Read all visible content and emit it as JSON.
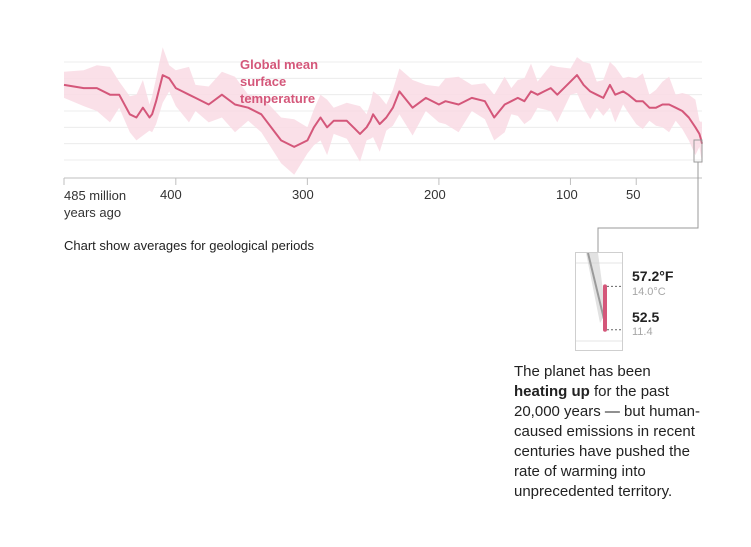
{
  "chart_data": {
    "type": "line",
    "series": [
      {
        "name": "Global mean surface temperature",
        "color": "#d4577a",
        "band_color": "#f9dbe4",
        "x": [
          485,
          470,
          460,
          450,
          443,
          435,
          430,
          425,
          420,
          418,
          415,
          410,
          405,
          400,
          395,
          390,
          385,
          375,
          365,
          355,
          345,
          335,
          320,
          310,
          300,
          295,
          290,
          285,
          280,
          270,
          265,
          260,
          255,
          252,
          250,
          245,
          240,
          235,
          230,
          220,
          210,
          200,
          195,
          185,
          175,
          165,
          158,
          150,
          145,
          140,
          135,
          130,
          125,
          120,
          115,
          110,
          100,
          95,
          90,
          85,
          80,
          75,
          70,
          66,
          60,
          56,
          50,
          45,
          40,
          35,
          30,
          25,
          20,
          15,
          10,
          5,
          2,
          0.5,
          0
        ],
        "y": [
          73,
          72,
          72,
          70,
          70,
          64,
          63,
          66,
          63,
          64,
          68,
          76,
          75,
          72,
          71,
          70,
          69,
          67,
          70,
          67,
          66,
          64,
          56,
          54,
          56,
          60,
          63,
          60,
          62,
          62,
          60,
          58,
          60,
          62,
          64,
          61,
          63,
          66,
          71,
          66,
          69,
          67,
          68,
          67,
          69,
          68,
          63,
          67,
          68,
          69,
          68,
          71,
          70,
          71,
          72,
          70,
          74,
          76,
          73,
          71,
          70,
          69,
          73,
          70,
          71,
          70,
          68,
          68,
          66,
          66,
          67,
          67,
          66,
          65,
          63,
          60,
          58,
          56,
          55
        ]
      }
    ],
    "xlim": [
      485,
      0
    ],
    "x_tick_labels": [
      "485 million years ago",
      "400",
      "300",
      "200",
      "100",
      "50"
    ],
    "x_ticks": [
      485,
      400,
      300,
      200,
      100,
      50
    ],
    "grid": true
  },
  "labels": {
    "series_label": "Global mean surface temperature",
    "x_first_line1": "485 million",
    "x_first_line2": "years ago",
    "x_400": "400",
    "x_300": "300",
    "x_200": "200",
    "x_100": "100",
    "x_50": "50",
    "footnote": "Chart show averages for geological periods"
  },
  "inset": {
    "value_high_f": "57.2°F",
    "value_high_c": "14.0°C",
    "value_low_f": "52.5",
    "value_low_c": "11.4",
    "high": 57.2,
    "low": 52.5
  },
  "annotation": {
    "text_before": "The planet has been ",
    "text_bold": "heating up",
    "text_after": " for the past 20,000 years — but human-caused emissions in recent centuries have pushed the rate of warming into unprecedented territory."
  }
}
